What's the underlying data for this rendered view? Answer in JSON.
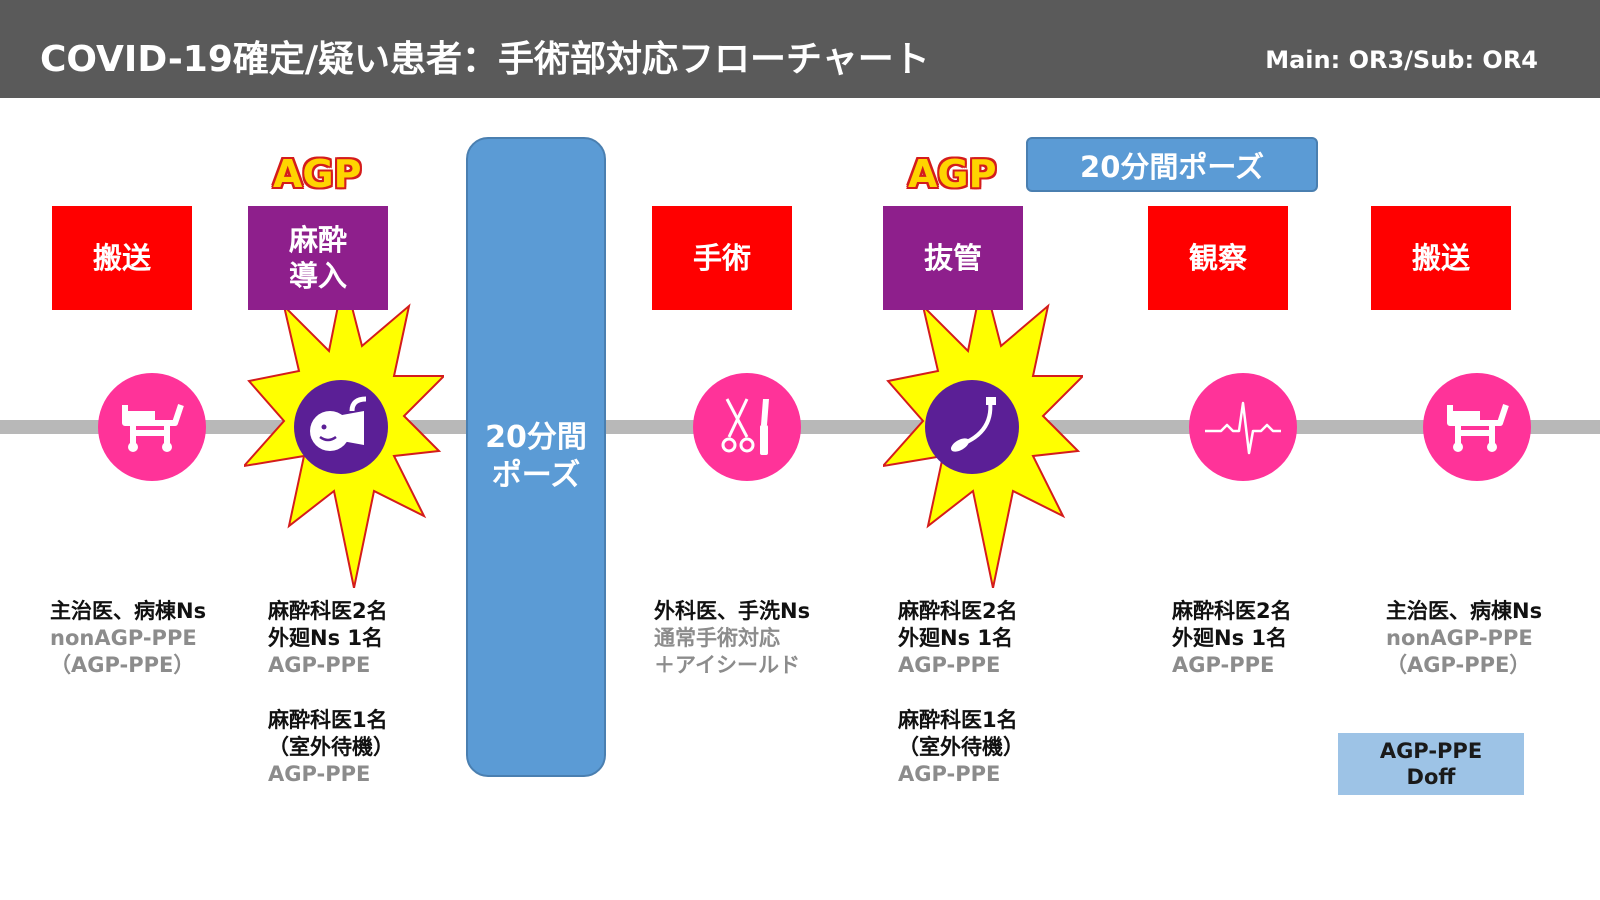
{
  "header": {
    "title": "COVID-19確定/疑い患者：手術部対応フローチャート",
    "subtitle": "Main: OR3/Sub: OR4"
  },
  "steps": [
    {
      "label": "搬送",
      "color": "#ff0000",
      "icon": "stretcher-icon",
      "agp": false
    },
    {
      "label": "麻酔\n導入",
      "color": "#8e1f8c",
      "icon": "anesthesia-mask-icon",
      "agp": true
    },
    {
      "label": "手術",
      "color": "#ff0000",
      "icon": "surgical-instruments-icon",
      "agp": false
    },
    {
      "label": "抜管",
      "color": "#8e1f8c",
      "icon": "endotracheal-tube-icon",
      "agp": true
    },
    {
      "label": "観察",
      "color": "#ff0000",
      "icon": "heartbeat-icon",
      "agp": false
    },
    {
      "label": "搬送",
      "color": "#ff0000",
      "icon": "stretcher-icon",
      "agp": false
    }
  ],
  "agp_label": "AGP",
  "pause_bar": "20分間\nポーズ",
  "pause_pill": "20分間ポーズ",
  "staff": [
    {
      "lines": [
        "主治医、病棟Ns"
      ],
      "ppe": [
        "nonAGP-PPE",
        "（AGP-PPE）"
      ]
    },
    {
      "lines": [
        "麻酔科医2名",
        "外廻Ns 1名"
      ],
      "ppe": [
        "AGP-PPE"
      ],
      "extra_lines": [
        "麻酔科医1名",
        "（室外待機）"
      ],
      "extra_ppe": [
        "AGP-PPE"
      ]
    },
    {
      "lines": [
        "外科医、手洗Ns"
      ],
      "ppe": [
        "通常手術対応",
        "＋アイシールド"
      ]
    },
    {
      "lines": [
        "麻酔科医2名",
        "外廻Ns 1名"
      ],
      "ppe": [
        "AGP-PPE"
      ],
      "extra_lines": [
        "麻酔科医1名",
        "（室外待機）"
      ],
      "extra_ppe": [
        "AGP-PPE"
      ]
    },
    {
      "lines": [
        "麻酔科医2名",
        "外廻Ns 1名"
      ],
      "ppe": [
        "AGP-PPE"
      ]
    },
    {
      "lines": [
        "主治医、病棟Ns"
      ],
      "ppe": [
        "nonAGP-PPE",
        "（AGP-PPE）"
      ]
    }
  ],
  "doff_note": "AGP-PPE\nDoff",
  "colors": {
    "red": "#ff0000",
    "purple": "#8e1f8c",
    "pink": "#ff3399",
    "violet": "#5b1f96",
    "blue": "#5b9bd5",
    "yellow": "#ffff00",
    "burst_outline": "#d41c1c"
  }
}
